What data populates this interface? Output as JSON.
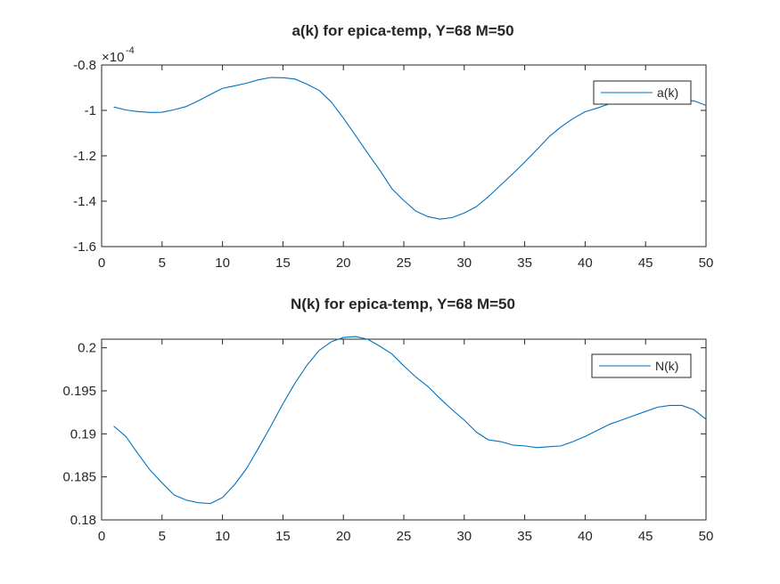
{
  "chart_data": [
    {
      "type": "line",
      "title": "a(k) for epica-temp, Y=68 M=50",
      "xlabel": "",
      "ylabel": "",
      "exponent_base": "×10",
      "exponent_power": "-4",
      "xlim": [
        0,
        50
      ],
      "ylim": [
        -1.6,
        -0.8
      ],
      "xticks": [
        0,
        5,
        10,
        15,
        20,
        25,
        30,
        35,
        40,
        45,
        50
      ],
      "xtick_labels": [
        "0",
        "5",
        "10",
        "15",
        "20",
        "25",
        "30",
        "35",
        "40",
        "45",
        "50"
      ],
      "yticks": [
        -1.6,
        -1.4,
        -1.2,
        -1.0,
        -0.8
      ],
      "ytick_labels": [
        "-1.6",
        "-1.4",
        "-1.2",
        "-1",
        "-0.8"
      ],
      "legend_position": "top-right",
      "color": "#0072BD",
      "series": [
        {
          "name": "a(k)",
          "x": [
            1,
            2,
            3,
            4,
            5,
            6,
            7,
            8,
            9,
            10,
            11,
            12,
            13,
            14,
            15,
            16,
            17,
            18,
            19,
            20,
            21,
            22,
            23,
            24,
            25,
            26,
            27,
            28,
            29,
            30,
            31,
            32,
            33,
            34,
            35,
            36,
            37,
            38,
            39,
            40,
            41,
            42,
            43,
            44,
            45,
            46,
            47,
            48,
            49,
            50
          ],
          "y": [
            -0.985,
            -0.998,
            -1.005,
            -1.009,
            -1.008,
            -0.997,
            -0.983,
            -0.958,
            -0.93,
            -0.903,
            -0.892,
            -0.88,
            -0.865,
            -0.855,
            -0.856,
            -0.862,
            -0.885,
            -0.912,
            -0.963,
            -1.034,
            -1.11,
            -1.188,
            -1.262,
            -1.344,
            -1.397,
            -1.444,
            -1.468,
            -1.479,
            -1.472,
            -1.452,
            -1.424,
            -1.38,
            -1.33,
            -1.28,
            -1.228,
            -1.173,
            -1.117,
            -1.073,
            -1.036,
            -1.006,
            -0.99,
            -0.971,
            -0.964,
            -0.96,
            -0.959,
            -0.958,
            -0.956,
            -0.955,
            -0.958,
            -0.978
          ]
        }
      ]
    },
    {
      "type": "line",
      "title": "N(k) for epica-temp, Y=68 M=50",
      "xlabel": "",
      "ylabel": "",
      "xlim": [
        0,
        50
      ],
      "ylim": [
        0.18,
        0.201
      ],
      "xticks": [
        0,
        5,
        10,
        15,
        20,
        25,
        30,
        35,
        40,
        45,
        50
      ],
      "xtick_labels": [
        "0",
        "5",
        "10",
        "15",
        "20",
        "25",
        "30",
        "35",
        "40",
        "45",
        "50"
      ],
      "yticks": [
        0.18,
        0.185,
        0.19,
        0.195,
        0.2
      ],
      "ytick_labels": [
        "0.18",
        "0.185",
        "0.19",
        "0.195",
        "0.2"
      ],
      "legend_position": "top-right",
      "color": "#0072BD",
      "series": [
        {
          "name": "N(k)",
          "x": [
            1,
            2,
            3,
            4,
            5,
            6,
            7,
            8,
            9,
            10,
            11,
            12,
            13,
            14,
            15,
            16,
            17,
            18,
            19,
            20,
            21,
            22,
            23,
            24,
            25,
            26,
            27,
            28,
            29,
            30,
            31,
            32,
            33,
            34,
            35,
            36,
            37,
            38,
            39,
            40,
            41,
            42,
            43,
            44,
            45,
            46,
            47,
            48,
            49,
            50
          ],
          "y": [
            0.1909,
            0.1897,
            0.1877,
            0.1858,
            0.1843,
            0.1829,
            0.1823,
            0.182,
            0.1819,
            0.1826,
            0.1841,
            0.186,
            0.1884,
            0.1909,
            0.1935,
            0.1959,
            0.198,
            0.1997,
            0.2007,
            0.2012,
            0.2013,
            0.201,
            0.2002,
            0.1993,
            0.1979,
            0.1966,
            0.1955,
            0.1941,
            0.1928,
            0.1916,
            0.1902,
            0.1893,
            0.1891,
            0.1887,
            0.1886,
            0.1884,
            0.1885,
            0.1886,
            0.1891,
            0.1897,
            0.1904,
            0.1911,
            0.1916,
            0.1921,
            0.1926,
            0.1931,
            0.1933,
            0.1933,
            0.1928,
            0.1917
          ]
        }
      ]
    }
  ]
}
